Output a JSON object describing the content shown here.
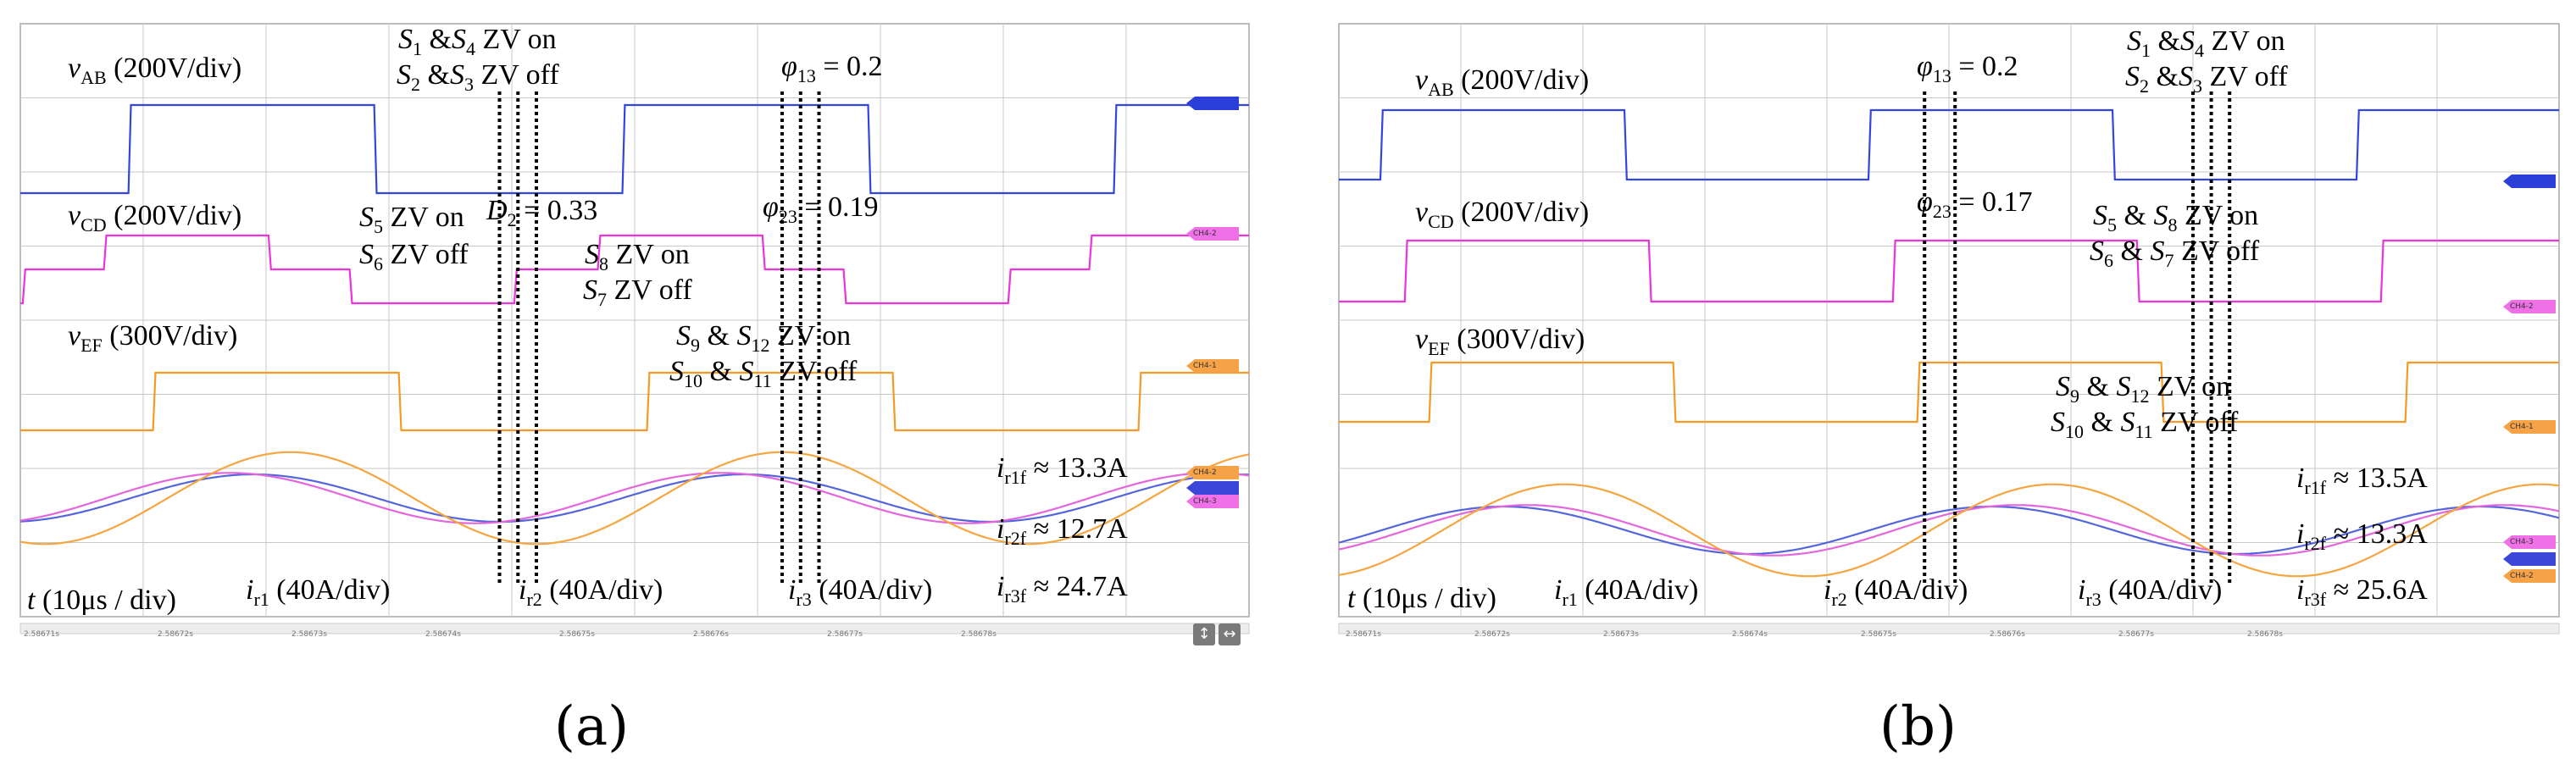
{
  "figure": {
    "panels": [
      {
        "caption": "(a)",
        "signal_labels": {
          "vab": {
            "sym": "v",
            "sub": "AB",
            "scale": "(200V/div)"
          },
          "vcd": {
            "sym": "v",
            "sub": "CD",
            "scale": "(200V/div)"
          },
          "vef": {
            "sym": "v",
            "sub": "EF",
            "scale": "(300V/div)"
          },
          "ir1": {
            "sym": "i",
            "sub": "r1",
            "scale": "(40A/div)"
          },
          "ir2": {
            "sym": "i",
            "sub": "r2",
            "scale": "(40A/div)"
          },
          "ir3": {
            "sym": "i",
            "sub": "r3",
            "scale": "(40A/div)"
          },
          "time": {
            "sym": "t",
            "scale": "(10μs / div)"
          }
        },
        "annotations": {
          "s1s4": {
            "a": "S",
            "as": "1",
            "mid": " &",
            "b": "S",
            "bs": "4",
            "tail": " ZV on"
          },
          "s2s3": {
            "a": "S",
            "as": "2",
            "mid": " &",
            "b": "S",
            "bs": "3",
            "tail": " ZV off"
          },
          "phi13": {
            "sym": "φ",
            "sub": "13",
            "val": " = 0.2"
          },
          "phi23": {
            "sym": "φ",
            "sub": "23",
            "val": " = 0.19"
          },
          "d2": {
            "sym": "D",
            "sub": "2",
            "val": " = 0.33"
          },
          "s5": {
            "a": "S",
            "as": "5",
            "tail": " ZV on"
          },
          "s6": {
            "a": "S",
            "as": "6",
            "tail": " ZV off"
          },
          "s8": {
            "a": "S",
            "as": "8",
            "tail": " ZV on"
          },
          "s7": {
            "a": "S",
            "as": "7",
            "tail": " ZV off"
          },
          "s9s12": {
            "a": "S",
            "as": "9",
            "mid": " & ",
            "b": "S",
            "bs": "12",
            "tail": " ZV on"
          },
          "s10s11": {
            "a": "S",
            "as": "10",
            "mid": " & ",
            "b": "S",
            "bs": "11",
            "tail": " ZV off"
          }
        },
        "rms": [
          {
            "sym": "i",
            "sub": "r1f",
            "val": "≈ 13.3A"
          },
          {
            "sym": "i",
            "sub": "r2f",
            "val": "≈ 12.7A"
          },
          {
            "sym": "i",
            "sub": "r3f",
            "val": "≈ 24.7A"
          }
        ],
        "time_ticks": [
          "2.58671s",
          "2.58672s",
          "2.58673s",
          "2.58674s",
          "2.58675s",
          "2.58676s",
          "2.58677s",
          "2.58678s"
        ],
        "channel_tags": [
          "CH4-1",
          "CH4-2",
          "CH4-3"
        ]
      },
      {
        "caption": "(b)",
        "signal_labels": {
          "vab": {
            "sym": "v",
            "sub": "AB",
            "scale": "(200V/div)"
          },
          "vcd": {
            "sym": "v",
            "sub": "CD",
            "scale": "(200V/div)"
          },
          "vef": {
            "sym": "v",
            "sub": "EF",
            "scale": "(300V/div)"
          },
          "ir1": {
            "sym": "i",
            "sub": "r1",
            "scale": "(40A/div)"
          },
          "ir2": {
            "sym": "i",
            "sub": "r2",
            "scale": "(40A/div)"
          },
          "ir3": {
            "sym": "i",
            "sub": "r3",
            "scale": "(40A/div)"
          },
          "time": {
            "sym": "t",
            "scale": "(10μs / div)"
          }
        },
        "annotations": {
          "s1s4": {
            "a": "S",
            "as": "1",
            "mid": " &",
            "b": "S",
            "bs": "4",
            "tail": " ZV on"
          },
          "s2s3": {
            "a": "S",
            "as": "2",
            "mid": " &",
            "b": "S",
            "bs": "3",
            "tail": " ZV off"
          },
          "phi13": {
            "sym": "φ",
            "sub": "13",
            "val": " = 0.2"
          },
          "phi23": {
            "sym": "φ",
            "sub": "23",
            "val": " = 0.17"
          },
          "s5s8": {
            "a": "S",
            "as": "5",
            "mid": " & ",
            "b": "S",
            "bs": "8",
            "tail": " ZV on"
          },
          "s6s7": {
            "a": "S",
            "as": "6",
            "mid": " & ",
            "b": "S",
            "bs": "7",
            "tail": " ZV off"
          },
          "s9s12": {
            "a": "S",
            "as": "9",
            "mid": " & ",
            "b": "S",
            "bs": "12",
            "tail": " ZV on"
          },
          "s10s11": {
            "a": "S",
            "as": "10",
            "mid": " & ",
            "b": "S",
            "bs": "11",
            "tail": " ZV off"
          }
        },
        "rms": [
          {
            "sym": "i",
            "sub": "r1f",
            "val": "≈ 13.5A"
          },
          {
            "sym": "i",
            "sub": "r2f",
            "val": "≈ 13.3A"
          },
          {
            "sym": "i",
            "sub": "r3f",
            "val": "≈ 25.6A"
          }
        ],
        "time_ticks": [
          "2.58671s",
          "2.58672s",
          "2.58673s",
          "2.58674s",
          "2.58675s",
          "2.58676s",
          "2.58677s",
          "2.58678s"
        ],
        "channel_tags": [
          "CH4-1",
          "CH4-2",
          "CH4-3"
        ]
      }
    ]
  },
  "colors": {
    "vab": "#3344e0",
    "vcd": "#ee33dd",
    "vef": "#f59a25",
    "ir1": "#5566dd",
    "ir2": "#e466dd",
    "ir3": "#f5a640",
    "grid": "#c9c9c9",
    "marker": "#000000"
  },
  "chart_data": [
    {
      "type": "line",
      "panel": "a",
      "title": "",
      "xlabel": "t (10μs / div)",
      "x_ticks": [
        "2.58671s",
        "2.58672s",
        "2.58673s",
        "2.58674s",
        "2.58675s",
        "2.58676s",
        "2.58677s",
        "2.58678s"
      ],
      "xlim_div": [
        0,
        10
      ],
      "series": [
        {
          "name": "vAB",
          "scale": "200V/div",
          "kind": "square",
          "period_div": 4,
          "phase_div": 0.9,
          "duty": 0.5,
          "amplitude_div": 0.55
        },
        {
          "name": "vCD",
          "scale": "200V/div",
          "kind": "three-level",
          "period_div": 4,
          "phase_div": 0.7,
          "duty": 0.33,
          "amplitude_div": 0.5
        },
        {
          "name": "vEF",
          "scale": "300V/div",
          "kind": "square",
          "period_div": 4,
          "phase_div": 1.1,
          "duty": 0.5,
          "amplitude_div": 0.5
        },
        {
          "name": "ir1",
          "scale": "40A/div",
          "kind": "sine",
          "period_div": 4,
          "phase_div": 0.9,
          "amplitude_div": 0.32,
          "rms_fundamental": "13.3A"
        },
        {
          "name": "ir2",
          "scale": "40A/div",
          "kind": "sine",
          "period_div": 4,
          "phase_div": 0.7,
          "amplitude_div": 0.34,
          "rms_fundamental": "12.7A"
        },
        {
          "name": "ir3",
          "scale": "40A/div",
          "kind": "sine",
          "period_div": 4,
          "phase_div": 1.2,
          "amplitude_div": 0.62,
          "rms_fundamental": "24.7A"
        }
      ],
      "markers_div": [
        3.9,
        4.05,
        4.2,
        6.2,
        6.35,
        6.5
      ],
      "phase_values": {
        "phi13": 0.2,
        "phi23": 0.19,
        "D2": 0.33
      }
    },
    {
      "type": "line",
      "panel": "b",
      "title": "",
      "xlabel": "t (10μs / div)",
      "x_ticks": [
        "2.58671s",
        "2.58672s",
        "2.58673s",
        "2.58674s",
        "2.58675s",
        "2.58676s",
        "2.58677s",
        "2.58678s"
      ],
      "xlim_div": [
        0,
        10
      ],
      "series": [
        {
          "name": "vAB",
          "scale": "200V/div",
          "kind": "square",
          "period_div": 4,
          "phase_div": 0.35,
          "duty": 0.5,
          "amplitude_div": 0.55
        },
        {
          "name": "vCD",
          "scale": "200V/div",
          "kind": "square",
          "period_div": 4,
          "phase_div": 0.55,
          "duty": 0.5,
          "amplitude_div": 0.45
        },
        {
          "name": "vEF",
          "scale": "300V/div",
          "kind": "square",
          "period_div": 4,
          "phase_div": 0.75,
          "duty": 0.5,
          "amplitude_div": 0.5
        },
        {
          "name": "ir1",
          "scale": "40A/div",
          "kind": "sine",
          "period_div": 4,
          "phase_div": 0.35,
          "amplitude_div": 0.32,
          "rms_fundamental": "13.5A"
        },
        {
          "name": "ir2",
          "scale": "40A/div",
          "kind": "sine",
          "period_div": 4,
          "phase_div": 0.55,
          "amplitude_div": 0.34,
          "rms_fundamental": "13.3A"
        },
        {
          "name": "ir3",
          "scale": "40A/div",
          "kind": "sine",
          "period_div": 4,
          "phase_div": 0.85,
          "amplitude_div": 0.62,
          "rms_fundamental": "25.6A"
        }
      ],
      "markers_div": [
        4.8,
        5.05,
        7.0,
        7.15,
        7.3
      ],
      "phase_values": {
        "phi13": 0.2,
        "phi23": 0.17
      }
    }
  ]
}
